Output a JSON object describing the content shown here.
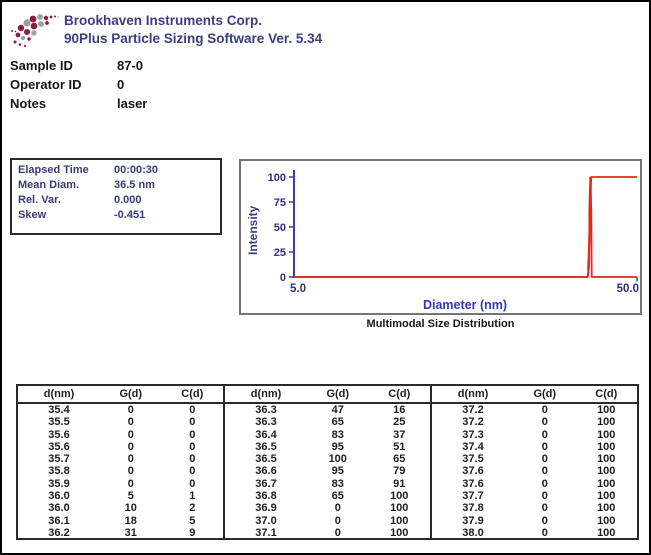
{
  "header": {
    "company": "Brookhaven Instruments Corp.",
    "software": "90Plus Particle Sizing Software Ver. 5.34"
  },
  "sample_info": {
    "rows": [
      {
        "label": "Sample ID",
        "value": "87-0"
      },
      {
        "label": "Operator ID",
        "value": "0"
      },
      {
        "label": "Notes",
        "value": "laser"
      }
    ]
  },
  "stats": {
    "rows": [
      {
        "label": "Elapsed Time",
        "value": "00:00:30"
      },
      {
        "label": "Mean Diam.",
        "value": "36.5 nm"
      },
      {
        "label": "Rel. Var.",
        "value": "0.000"
      },
      {
        "label": "Skew",
        "value": "-0.451"
      }
    ]
  },
  "chart_data": {
    "type": "line",
    "title": "Multimodal Size Distribution",
    "xlabel": "Diameter (nm)",
    "ylabel": "Intensity",
    "x_scale": "log",
    "xlim": [
      5.0,
      50.0
    ],
    "ylim": [
      0,
      100
    ],
    "x_tick_labels": [
      "5.0",
      "50.0"
    ],
    "y_ticks": [
      0,
      25,
      50,
      75,
      100
    ],
    "grid": false,
    "line_color": "#e8261c",
    "axis_color": "#3c3cae",
    "x": [
      35.4,
      35.5,
      35.6,
      35.6,
      35.7,
      35.8,
      35.9,
      36.0,
      36.0,
      36.1,
      36.2,
      36.3,
      36.3,
      36.4,
      36.5,
      36.5,
      36.6,
      36.7,
      36.8,
      36.9,
      37.0,
      37.1,
      37.2,
      37.2,
      37.3,
      37.4,
      37.5,
      37.6,
      37.6,
      37.7,
      37.8,
      37.9,
      38.0
    ],
    "series": [
      {
        "name": "G(d)",
        "start": 0,
        "end": 0,
        "values": [
          0,
          0,
          0,
          0,
          0,
          0,
          0,
          5,
          10,
          18,
          31,
          47,
          65,
          83,
          95,
          100,
          95,
          83,
          65,
          0,
          0,
          0,
          0,
          0,
          0,
          0,
          0,
          0,
          0,
          0,
          0,
          0,
          0
        ]
      },
      {
        "name": "C(d)",
        "start": 0,
        "end": 100,
        "values": [
          0,
          0,
          0,
          0,
          0,
          0,
          0,
          1,
          2,
          5,
          9,
          16,
          25,
          37,
          51,
          65,
          79,
          91,
          100,
          100,
          100,
          100,
          100,
          100,
          100,
          100,
          100,
          100,
          100,
          100,
          100,
          100,
          100
        ]
      }
    ]
  },
  "table": {
    "headers": [
      "d(nm)",
      "G(d)",
      "C(d)"
    ],
    "groups": [
      {
        "rows": [
          [
            "35.4",
            "0",
            "0"
          ],
          [
            "35.5",
            "0",
            "0"
          ],
          [
            "35.6",
            "0",
            "0"
          ],
          [
            "35.6",
            "0",
            "0"
          ],
          [
            "35.7",
            "0",
            "0"
          ],
          [
            "35.8",
            "0",
            "0"
          ],
          [
            "35.9",
            "0",
            "0"
          ],
          [
            "36.0",
            "5",
            "1"
          ],
          [
            "36.0",
            "10",
            "2"
          ],
          [
            "36.1",
            "18",
            "5"
          ],
          [
            "36.2",
            "31",
            "9"
          ]
        ]
      },
      {
        "rows": [
          [
            "36.3",
            "47",
            "16"
          ],
          [
            "36.3",
            "65",
            "25"
          ],
          [
            "36.4",
            "83",
            "37"
          ],
          [
            "36.5",
            "95",
            "51"
          ],
          [
            "36.5",
            "100",
            "65"
          ],
          [
            "36.6",
            "95",
            "79"
          ],
          [
            "36.7",
            "83",
            "91"
          ],
          [
            "36.8",
            "65",
            "100"
          ],
          [
            "36.9",
            "0",
            "100"
          ],
          [
            "37.0",
            "0",
            "100"
          ],
          [
            "37.1",
            "0",
            "100"
          ]
        ]
      },
      {
        "rows": [
          [
            "37.2",
            "0",
            "100"
          ],
          [
            "37.2",
            "0",
            "100"
          ],
          [
            "37.3",
            "0",
            "100"
          ],
          [
            "37.4",
            "0",
            "100"
          ],
          [
            "37.5",
            "0",
            "100"
          ],
          [
            "37.6",
            "0",
            "100"
          ],
          [
            "37.6",
            "0",
            "100"
          ],
          [
            "37.7",
            "0",
            "100"
          ],
          [
            "37.8",
            "0",
            "100"
          ],
          [
            "37.9",
            "0",
            "100"
          ],
          [
            "38.0",
            "0",
            "100"
          ]
        ]
      }
    ]
  }
}
